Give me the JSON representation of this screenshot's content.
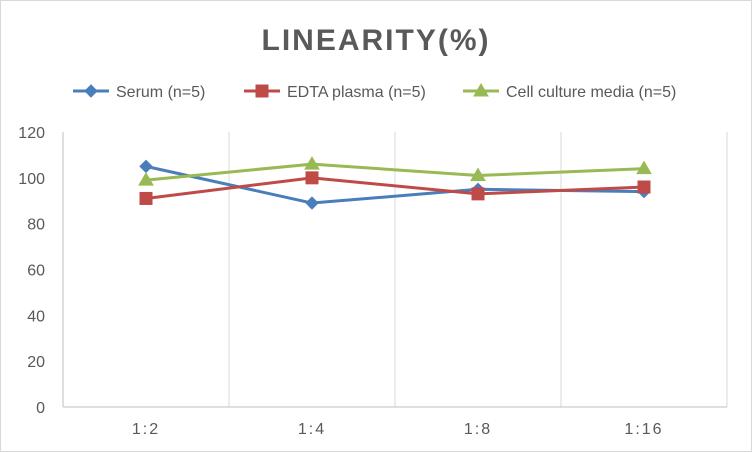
{
  "chart_data": {
    "type": "line",
    "title": "LINEARITY(%)",
    "xlabel": "",
    "ylabel": "",
    "categories": [
      "1:2",
      "1:4",
      "1:8",
      "1:16"
    ],
    "ylim": [
      0,
      120
    ],
    "yticks": [
      0,
      20,
      40,
      60,
      80,
      100,
      120
    ],
    "grid": "vertical",
    "legend_position": "top",
    "series": [
      {
        "name": "Serum (n=5)",
        "values": [
          105,
          89,
          95,
          94
        ],
        "color": "#4a7ebb",
        "marker": "diamond"
      },
      {
        "name": "EDTA plasma (n=5)",
        "values": [
          91,
          100,
          93,
          96
        ],
        "color": "#be4b48",
        "marker": "square"
      },
      {
        "name": "Cell culture media (n=5)",
        "values": [
          99,
          106,
          101,
          104
        ],
        "color": "#98b954",
        "marker": "triangle"
      }
    ]
  }
}
